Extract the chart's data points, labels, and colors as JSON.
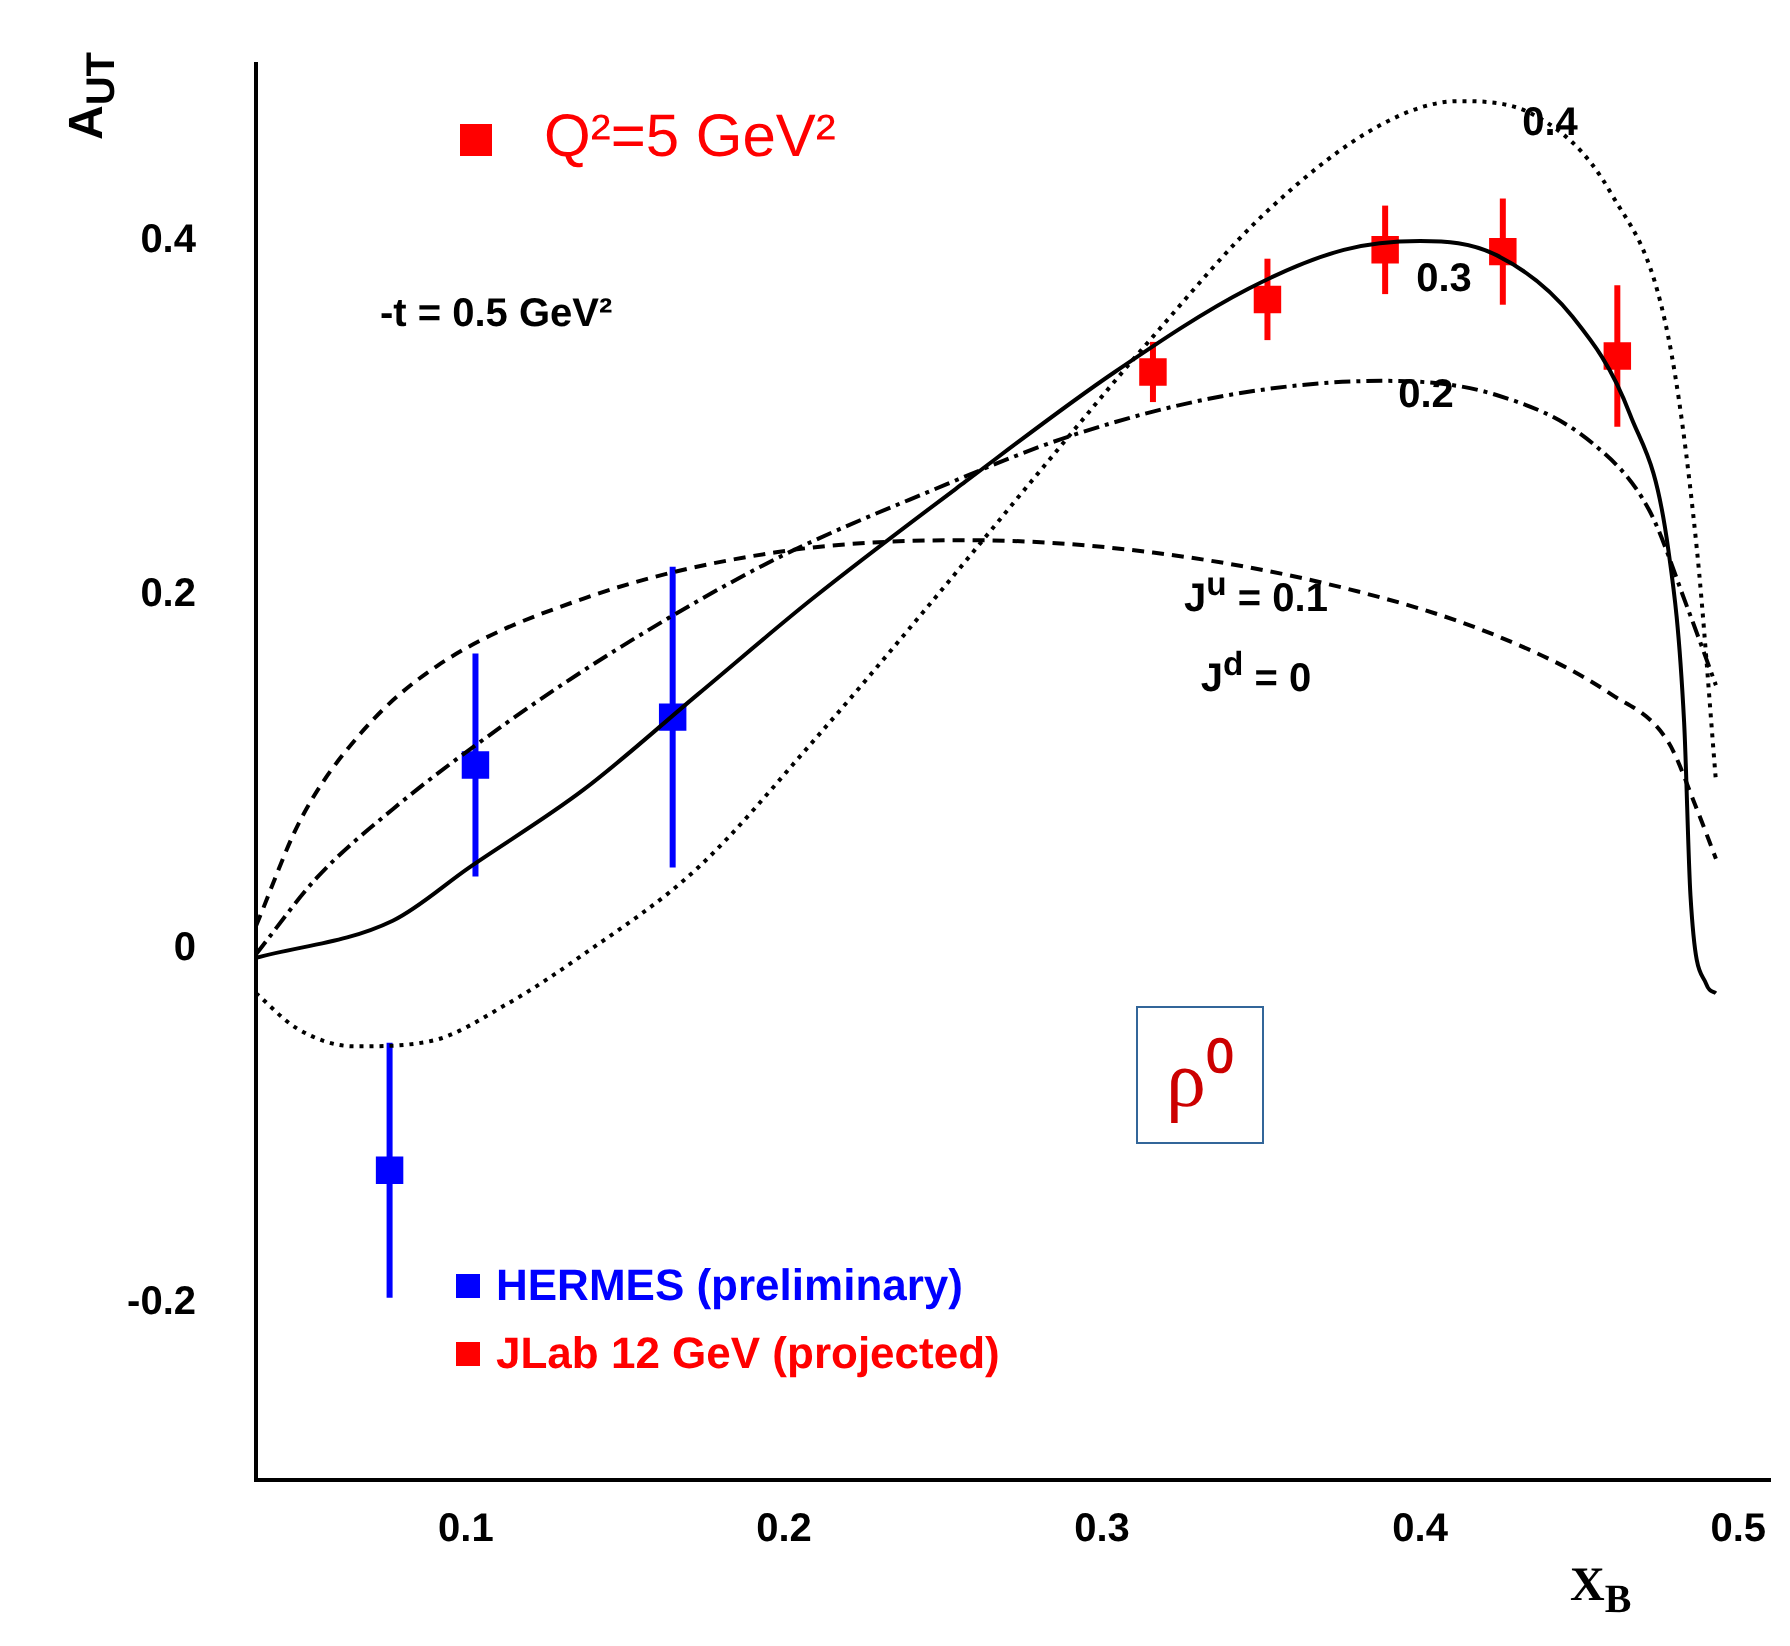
{
  "chart_data": {
    "type": "scatter",
    "xlabel": "X$_{B}$",
    "ylabel": "A$_{UT}$",
    "xlim": [
      0.034,
      0.51
    ],
    "ylim": [
      -0.3,
      0.5
    ],
    "xticks": [
      0.1,
      0.2,
      0.3,
      0.4,
      0.5
    ],
    "yticks": [
      -0.2,
      0,
      0.2,
      0.4
    ],
    "grid": false,
    "legend": "bottom left",
    "marker": "none",
    "series": [
      {
        "type": "line",
        "line_style": "dashed",
        "color": "#000000",
        "x": [
          0.034,
          0.048,
          0.067,
          0.091,
          0.137,
          0.197,
          0.257,
          0.316,
          0.376,
          0.424,
          0.46,
          0.478,
          0.487,
          0.493
        ],
        "values": [
          0.013,
          0.073,
          0.122,
          0.16,
          0.198,
          0.224,
          0.231,
          0.224,
          0.204,
          0.177,
          0.144,
          0.117,
          0.079,
          0.051
        ]
      },
      {
        "type": "line",
        "line_style": "dashdot",
        "color": "#000000",
        "x": [
          0.034,
          0.053,
          0.077,
          0.113,
          0.149,
          0.197,
          0.245,
          0.292,
          0.34,
          0.388,
          0.424,
          0.454,
          0.472,
          0.484,
          0.493
        ],
        "values": [
          -0.003,
          0.04,
          0.079,
          0.128,
          0.171,
          0.22,
          0.258,
          0.291,
          0.313,
          0.321,
          0.313,
          0.286,
          0.248,
          0.193,
          0.149
        ]
      },
      {
        "type": "line",
        "line_style": "solid",
        "color": "#000000",
        "x": [
          0.034,
          0.077,
          0.101,
          0.137,
          0.173,
          0.209,
          0.257,
          0.304,
          0.346,
          0.376,
          0.4,
          0.424,
          0.448,
          0.466,
          0.478,
          0.483,
          0.485,
          0.49,
          0.493
        ],
        "values": [
          -0.005,
          0.016,
          0.046,
          0.09,
          0.144,
          0.198,
          0.264,
          0.326,
          0.373,
          0.395,
          0.4,
          0.392,
          0.357,
          0.302,
          0.226,
          0.128,
          0.03,
          -0.02,
          -0.025
        ]
      },
      {
        "type": "line",
        "line_style": "dotted",
        "color": "#000000",
        "x": [
          0.034,
          0.047,
          0.065,
          0.089,
          0.113,
          0.137,
          0.173,
          0.209,
          0.245,
          0.28,
          0.316,
          0.352,
          0.388,
          0.412,
          0.436,
          0.46,
          0.478,
          0.487,
          0.493
        ],
        "values": [
          -0.025,
          -0.045,
          -0.055,
          -0.052,
          -0.031,
          -0.003,
          0.046,
          0.117,
          0.193,
          0.269,
          0.346,
          0.417,
          0.466,
          0.479,
          0.471,
          0.427,
          0.346,
          0.226,
          0.095
        ]
      },
      {
        "marker": "square",
        "name": "HERMES (preliminary)",
        "color": "#0000ff",
        "x": [
          0.076,
          0.103,
          0.165
        ],
        "values": [
          -0.125,
          0.104,
          0.131
        ],
        "errors": [
          0.072,
          0.063,
          0.085
        ]
      },
      {
        "marker": "square",
        "name": "JLab 12 GeV (projected)",
        "color": "#ff0000",
        "x": [
          0.316,
          0.352,
          0.389,
          0.426,
          0.462
        ],
        "values": [
          0.326,
          0.367,
          0.395,
          0.394,
          0.335
        ],
        "errors": [
          0.017,
          0.023,
          0.025,
          0.03,
          0.04
        ]
      }
    ],
    "annotations": [
      "Q²=5 GeV²",
      "-t = 0.5 GeV²",
      "ρ⁰",
      "0.4",
      "0.3",
      "0.2",
      "J$^{u}$ = 0.1",
      "J$^{d}$ = 0"
    ]
  }
}
